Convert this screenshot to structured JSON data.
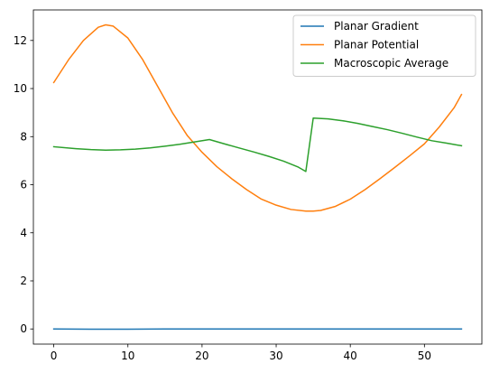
{
  "chart_data": {
    "type": "line",
    "title": "",
    "xlabel": "",
    "ylabel": "",
    "xlim": [
      -2.75,
      57.75
    ],
    "ylim": [
      -0.63,
      13.27
    ],
    "xticks": [
      0,
      10,
      20,
      30,
      40,
      50
    ],
    "yticks": [
      0,
      2,
      4,
      6,
      8,
      10,
      12
    ],
    "grid": false,
    "legend_position": "top-right",
    "series": [
      {
        "name": "Planar Gradient",
        "color": "#1f77b4",
        "x": [
          0,
          5,
          10,
          15,
          20,
          25,
          30,
          35,
          40,
          45,
          50,
          55
        ],
        "y": [
          0.0,
          -0.01,
          -0.01,
          0.0,
          0.0,
          0.0,
          0.0,
          0.0,
          0.0,
          0.0,
          0.0,
          0.0
        ]
      },
      {
        "name": "Planar Potential",
        "color": "#ff7f0e",
        "x": [
          0,
          2,
          4,
          6,
          7,
          8,
          10,
          12,
          14,
          16,
          18,
          20,
          22,
          24,
          26,
          28,
          30,
          32,
          34,
          35,
          36,
          38,
          40,
          42,
          44,
          46,
          48,
          50,
          52,
          54,
          55
        ],
        "y": [
          10.25,
          11.2,
          12.0,
          12.55,
          12.65,
          12.6,
          12.1,
          11.2,
          10.1,
          9.0,
          8.05,
          7.35,
          6.75,
          6.25,
          5.8,
          5.4,
          5.15,
          4.97,
          4.9,
          4.9,
          4.93,
          5.1,
          5.4,
          5.8,
          6.25,
          6.72,
          7.2,
          7.7,
          8.4,
          9.2,
          9.75
        ]
      },
      {
        "name": "Macroscopic Average",
        "color": "#2ca02c",
        "x": [
          0,
          3,
          5,
          7,
          9,
          11,
          13,
          15,
          17,
          19,
          21,
          23,
          25,
          27,
          29,
          31,
          33,
          34,
          35,
          37,
          39,
          41,
          43,
          45,
          47,
          49,
          51,
          53,
          55
        ],
        "y": [
          7.58,
          7.5,
          7.46,
          7.44,
          7.45,
          7.48,
          7.53,
          7.6,
          7.68,
          7.78,
          7.88,
          7.7,
          7.53,
          7.36,
          7.18,
          6.98,
          6.73,
          6.55,
          8.77,
          8.74,
          8.66,
          8.55,
          8.42,
          8.29,
          8.14,
          7.98,
          7.83,
          7.73,
          7.62
        ]
      }
    ]
  }
}
